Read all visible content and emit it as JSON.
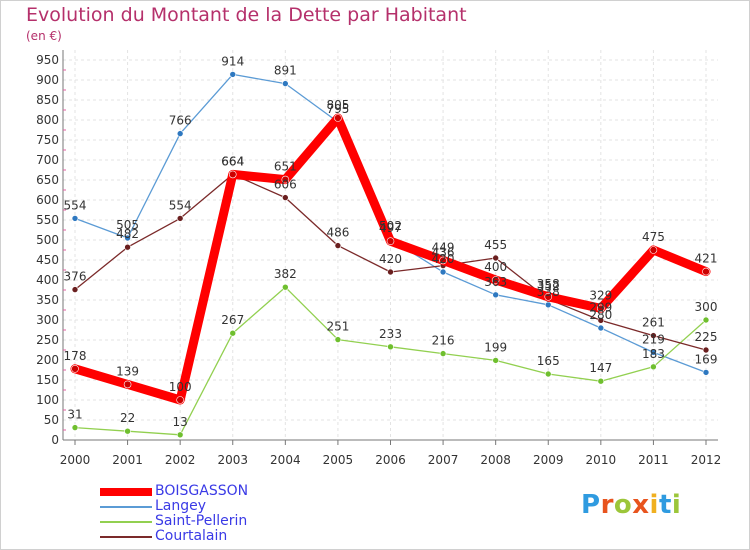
{
  "title": "Evolution du Montant de la Dette par Habitant",
  "subtitle": "(en €)",
  "logo": {
    "text": "Proxiti",
    "letter_colors": [
      "#2f9be0",
      "#e8541e",
      "#9cc63a",
      "#e8541e",
      "#f0b020",
      "#2f9be0",
      "#9cc63a"
    ]
  },
  "chart_data": {
    "type": "line",
    "x": [
      "2000",
      "2001",
      "2002",
      "2003",
      "2004",
      "2005",
      "2006",
      "2007",
      "2008",
      "2009",
      "2010",
      "2011",
      "2012"
    ],
    "ylim": [
      0,
      950
    ],
    "yticks": [
      0,
      50,
      100,
      150,
      200,
      250,
      300,
      350,
      400,
      450,
      500,
      550,
      600,
      650,
      700,
      750,
      800,
      850,
      900,
      950
    ],
    "grid": true,
    "legend_position": "bottom-left",
    "series": [
      {
        "name": "Langey",
        "color": "#5b9bd5",
        "marker": "#2e78c0",
        "values": [
          554,
          505,
          766,
          914,
          891,
          795,
          502,
          420,
          363,
          338,
          280,
          219,
          169
        ],
        "labels": [
          "554",
          "505",
          "766",
          "914",
          "891",
          "795",
          "502",
          "420",
          "363",
          "338",
          "280",
          "219",
          "169"
        ]
      },
      {
        "name": "Saint-Pellerin",
        "color": "#92d050",
        "marker": "#6fbf2e",
        "values": [
          31,
          22,
          13,
          267,
          382,
          251,
          233,
          216,
          199,
          165,
          147,
          183,
          300
        ],
        "labels": [
          "31",
          "22",
          "13",
          "267",
          "382",
          "251",
          "233",
          "216",
          "199",
          "165",
          "147",
          "183",
          "300"
        ]
      },
      {
        "name": "Courtalain",
        "color": "#7b2a2a",
        "marker": "#6a1f1f",
        "values": [
          376,
          482,
          554,
          664,
          606,
          486,
          420,
          436,
          455,
          352,
          299,
          261,
          225
        ],
        "labels": [
          "376",
          "482",
          "554",
          "664",
          "606",
          "486",
          "420",
          "436",
          "455",
          "352",
          "299",
          "261",
          "225"
        ]
      },
      {
        "name": "BOISGASSON",
        "color": "#ff0000",
        "marker": "#cc0000",
        "values": [
          178,
          139,
          100,
          664,
          651,
          805,
          497,
          449,
          400,
          358,
          329,
          475,
          421
        ],
        "labels": [
          "178",
          "139",
          "100",
          "664",
          "651",
          "805",
          "497",
          "449",
          "400",
          "358",
          "329",
          "475",
          "421"
        ]
      }
    ],
    "legend_order": [
      "BOISGASSON",
      "Langey",
      "Saint-Pellerin",
      "Courtalain"
    ]
  }
}
